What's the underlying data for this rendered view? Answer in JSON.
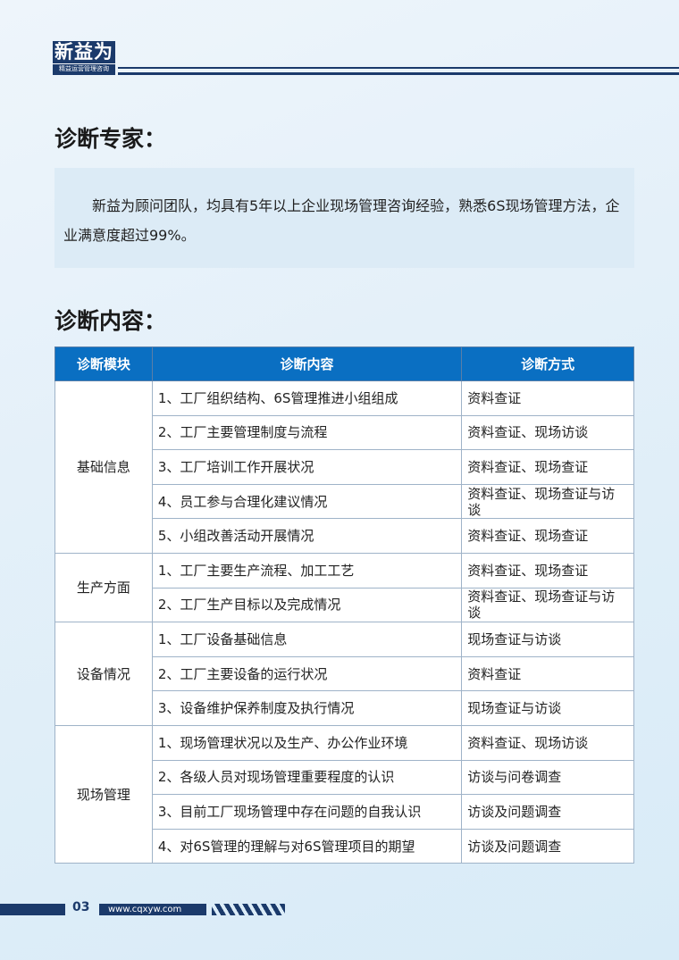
{
  "logo": {
    "name": "新益为",
    "tagline": "精益运营管理咨询"
  },
  "section1": {
    "title": "诊断专家：",
    "text": "新益为顾问团队，均具有5年以上企业现场管理咨询经验，熟悉6S现场管理方法，企业满意度超过99%。"
  },
  "section2": {
    "title": "诊断内容："
  },
  "table": {
    "headers": [
      "诊断模块",
      "诊断内容",
      "诊断方式"
    ],
    "groups": [
      {
        "module": "基础信息",
        "rows": [
          [
            "1、工厂组织结构、6S管理推进小组组成",
            "资料查证"
          ],
          [
            "2、工厂主要管理制度与流程",
            "资料查证、现场访谈"
          ],
          [
            "3、工厂培训工作开展状况",
            "资料查证、现场查证"
          ],
          [
            "4、员工参与合理化建议情况",
            "资料查证、现场查证与访谈"
          ],
          [
            "5、小组改善活动开展情况",
            "资料查证、现场查证"
          ]
        ]
      },
      {
        "module": "生产方面",
        "rows": [
          [
            "1、工厂主要生产流程、加工工艺",
            "资料查证、现场查证"
          ],
          [
            "2、工厂生产目标以及完成情况",
            "资料查证、现场查证与访谈"
          ]
        ]
      },
      {
        "module": "设备情况",
        "rows": [
          [
            "1、工厂设备基础信息",
            "现场查证与访谈"
          ],
          [
            "2、工厂主要设备的运行状况",
            "资料查证"
          ],
          [
            "3、设备维护保养制度及执行情况",
            "现场查证与访谈"
          ]
        ]
      },
      {
        "module": "现场管理",
        "rows": [
          [
            "1、现场管理状况以及生产、办公作业环境",
            "资料查证、现场访谈"
          ],
          [
            "2、各级人员对现场管理重要程度的认识",
            "访谈与问卷调查"
          ],
          [
            "3、目前工厂现场管理中存在问题的自我认识",
            "访谈及问题调查"
          ],
          [
            "4、对6S管理的理解与对6S管理项目的期望",
            "访谈及问题调查"
          ]
        ]
      }
    ]
  },
  "footer": {
    "page": "03",
    "url": "www.cqxyw.com"
  }
}
